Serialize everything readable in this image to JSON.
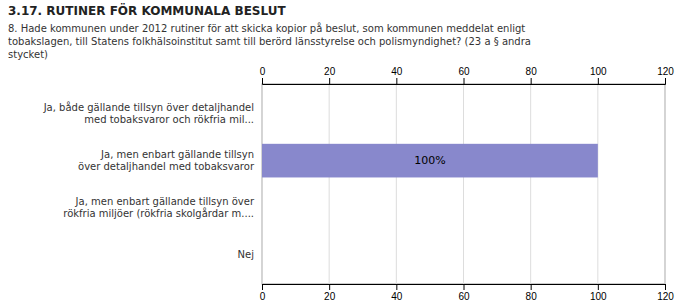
{
  "chart_data": {
    "type": "bar",
    "orientation": "horizontal",
    "title": "3.17. RUTINER FÖR KOMMUNALA BESLUT",
    "subtitle": "8. Hade kommunen under 2012 rutiner för att skicka kopior på beslut, som kommunen meddelat enligt\ntobakslagen, till Statens folkhälsoinstitut samt till berörd länsstyrelse och polismyndighet? (23 a § andra\nstycket)",
    "categories": [
      "Ja, både gällande tillsyn över detaljhandel\nmed tobaksvaror och rökfria mil...",
      "Ja, men enbart gällande tillsyn\növer detaljhandel med tobaksvaror",
      "Ja, men enbart gällande tillsyn över\nrökfria miljöer (rökfria skolgårdar m....",
      "Nej"
    ],
    "values": [
      0,
      100,
      0,
      0
    ],
    "value_labels": [
      null,
      "100%",
      null,
      null
    ],
    "data_labels": true,
    "color": "#8888cc",
    "xlim": [
      0,
      120
    ],
    "xticks": [
      0,
      20,
      40,
      60,
      80,
      100,
      120
    ],
    "grid": true
  }
}
